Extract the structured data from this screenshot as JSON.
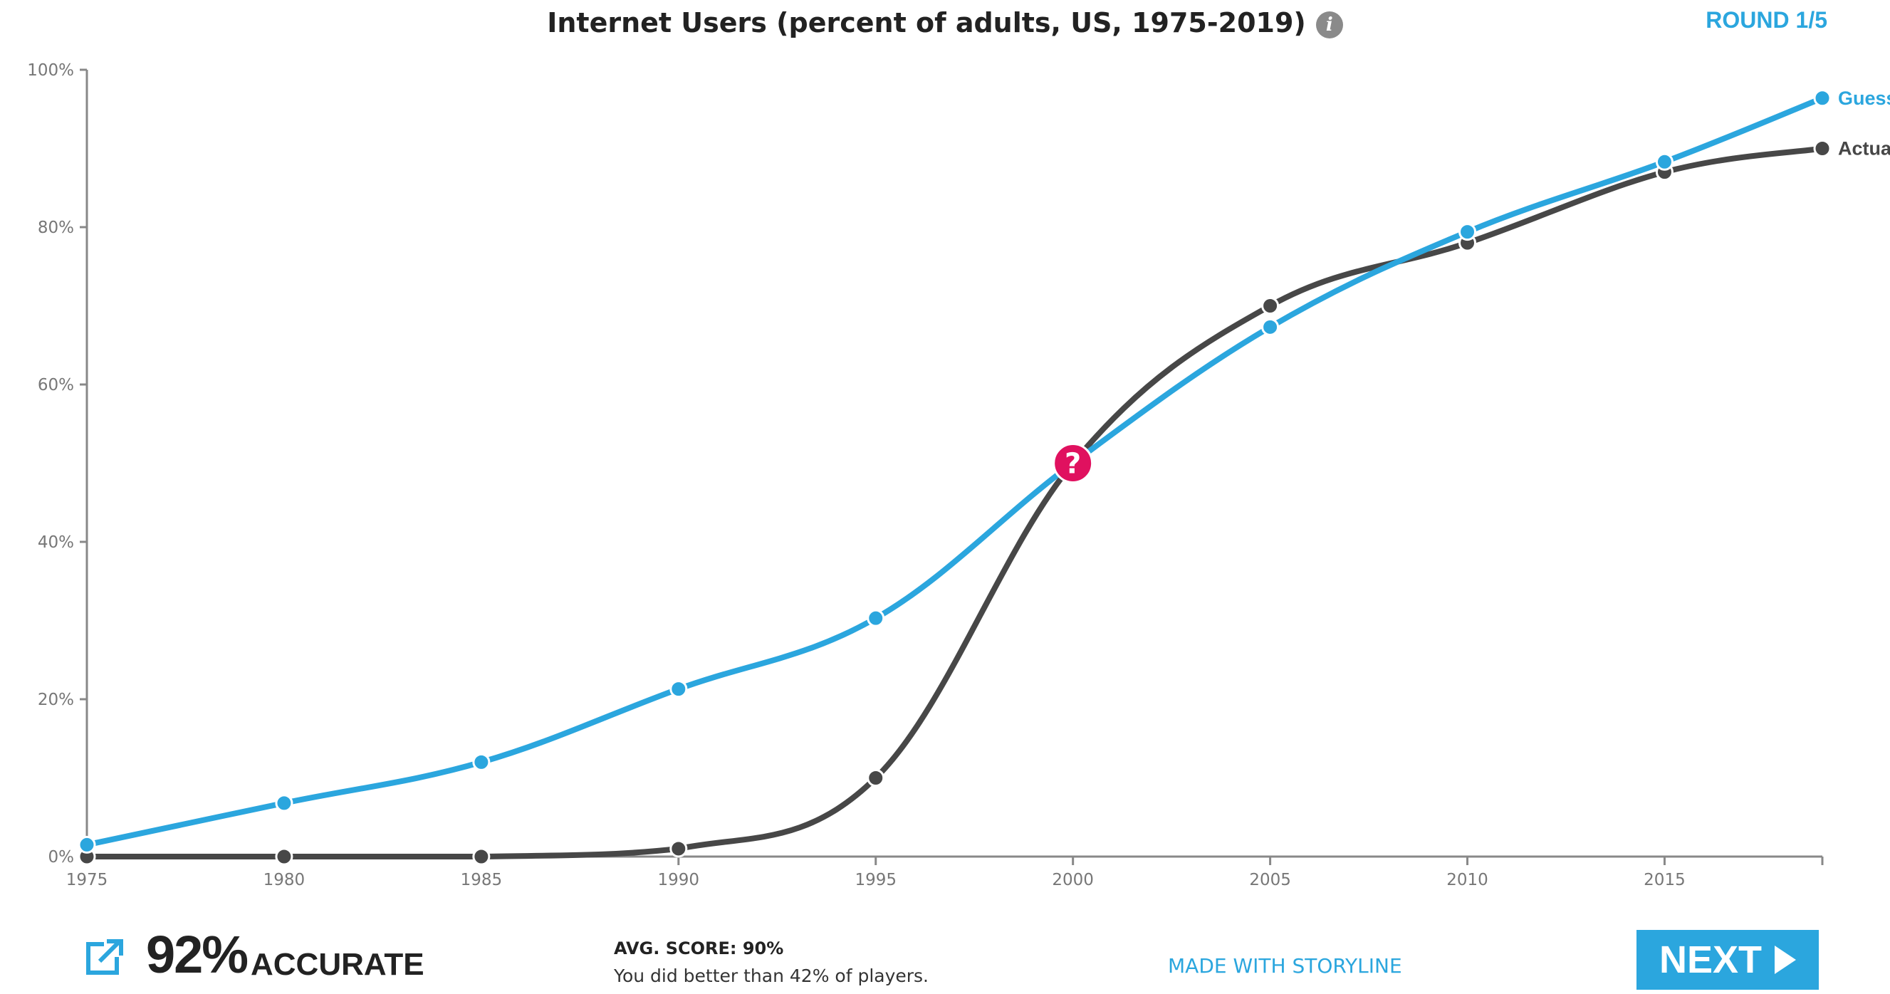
{
  "header": {
    "title": "Internet Users (percent of adults, US, 1975-2019)",
    "info_icon": "i",
    "round": "ROUND 1/5"
  },
  "chart_data": {
    "type": "line",
    "title": "Internet Users (percent of adults, US, 1975-2019)",
    "xlabel": "",
    "ylabel": "",
    "xlim": [
      1975,
      2019
    ],
    "ylim": [
      0,
      100
    ],
    "x_ticks": [
      1975,
      1980,
      1985,
      1990,
      1995,
      2000,
      2005,
      2010,
      2015
    ],
    "x_tick_labels": [
      "1975",
      "1980",
      "1985",
      "1990",
      "1995",
      "2000",
      "2005",
      "2010",
      "2015"
    ],
    "y_ticks": [
      0,
      20,
      40,
      60,
      80,
      100
    ],
    "y_tick_labels": [
      "0%",
      "20%",
      "40%",
      "60%",
      "80%",
      "100%"
    ],
    "series": [
      {
        "name": "Guess",
        "color": "#2ba6de",
        "x": [
          1975,
          1980,
          1985,
          1990,
          1995,
          2000,
          2005,
          2010,
          2015,
          2019
        ],
        "values": [
          1.5,
          6.8,
          12.0,
          21.3,
          30.3,
          50.0,
          67.3,
          79.4,
          88.3,
          96.4
        ]
      },
      {
        "name": "Actual",
        "color": "#474747",
        "x": [
          1975,
          1980,
          1985,
          1990,
          1995,
          2000,
          2005,
          2010,
          2015,
          2019
        ],
        "values": [
          0,
          0,
          0,
          1,
          10,
          50,
          70,
          78,
          87,
          90
        ]
      }
    ],
    "marker": {
      "x": 2000,
      "y": 50,
      "label": "?",
      "color": "#e0115f"
    }
  },
  "footer": {
    "accuracy_value": "92%",
    "accuracy_word": "ACCURATE",
    "avg_score": "AVG. SCORE: 90%",
    "better_than": "You did better than 42% of players.",
    "made_with": "MADE WITH STORYLINE",
    "next_label": "NEXT"
  }
}
